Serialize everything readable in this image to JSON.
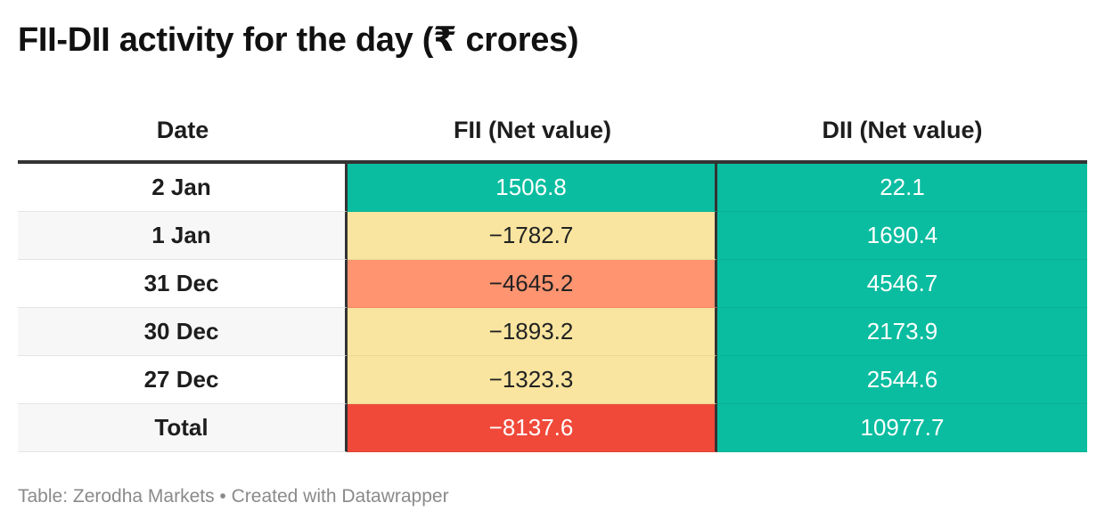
{
  "title": "FII-DII activity for the day (₹ crores)",
  "table": {
    "columns": [
      "Date",
      "FII (Net value)",
      "DII (Net value)"
    ],
    "rows": [
      {
        "date": "2 Jan",
        "fii": "1506.8",
        "dii": "22.1",
        "fii_color": "#0abda0",
        "dii_color": "#0abda0",
        "fii_text_color": "#ffffff",
        "dii_text_color": "#ffffff"
      },
      {
        "date": "1 Jan",
        "fii": "−1782.7",
        "dii": "1690.4",
        "fii_color": "#f9e59f",
        "dii_color": "#0abda0",
        "fii_text_color": "#222222",
        "dii_text_color": "#ffffff"
      },
      {
        "date": "31 Dec",
        "fii": "−4645.2",
        "dii": "4546.7",
        "fii_color": "#fe9470",
        "dii_color": "#0abda0",
        "fii_text_color": "#222222",
        "dii_text_color": "#ffffff"
      },
      {
        "date": "30 Dec",
        "fii": "−1893.2",
        "dii": "2173.9",
        "fii_color": "#f9e59f",
        "dii_color": "#0abda0",
        "fii_text_color": "#222222",
        "dii_text_color": "#ffffff"
      },
      {
        "date": "27 Dec",
        "fii": "−1323.3",
        "dii": "2544.6",
        "fii_color": "#f9e59f",
        "dii_color": "#0abda0",
        "fii_text_color": "#222222",
        "dii_text_color": "#ffffff"
      },
      {
        "date": "Total",
        "fii": "−8137.6",
        "dii": "10977.7",
        "fii_color": "#f0493a",
        "dii_color": "#0abda0",
        "fii_text_color": "#ffffff",
        "dii_text_color": "#ffffff"
      }
    ]
  },
  "chart_data": {
    "type": "table",
    "title": "FII-DII activity for the day (₹ crores)",
    "columns": [
      "Date",
      "FII (Net value)",
      "DII (Net value)"
    ],
    "categories": [
      "2 Jan",
      "1 Jan",
      "31 Dec",
      "30 Dec",
      "27 Dec",
      "Total"
    ],
    "series": [
      {
        "name": "FII (Net value)",
        "values": [
          1506.8,
          -1782.7,
          -4645.2,
          -1893.2,
          -1323.3,
          -8137.6
        ]
      },
      {
        "name": "DII (Net value)",
        "values": [
          22.1,
          1690.4,
          4546.7,
          2173.9,
          2544.6,
          10977.7
        ]
      }
    ]
  },
  "footer": {
    "source": "Table: Zerodha Markets • Created with Datawrapper"
  }
}
